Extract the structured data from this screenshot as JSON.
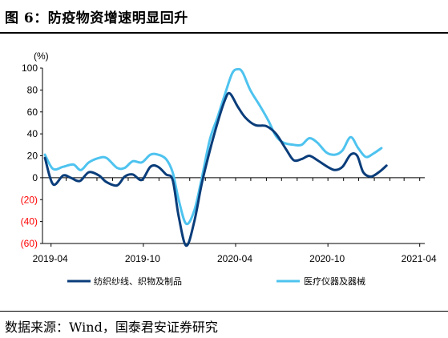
{
  "title": "图 6：防疫物资增速明显回升",
  "source": "数据来源：Wind，国泰君安证券研究",
  "chart_data": {
    "type": "line",
    "unit_label": "(%)",
    "ylim": [
      -60,
      100
    ],
    "y_ticks": [
      {
        "value": 100,
        "label": "100",
        "color": "#000000"
      },
      {
        "value": 80,
        "label": "80",
        "color": "#000000"
      },
      {
        "value": 60,
        "label": "60",
        "color": "#000000"
      },
      {
        "value": 40,
        "label": "40",
        "color": "#000000"
      },
      {
        "value": 20,
        "label": "20",
        "color": "#000000"
      },
      {
        "value": 0,
        "label": "0",
        "color": "#000000"
      },
      {
        "value": -20,
        "label": "(20)",
        "color": "#ff0000"
      },
      {
        "value": -40,
        "label": "(40)",
        "color": "#ff0000"
      },
      {
        "value": -60,
        "label": "(60)",
        "color": "#ff0000"
      }
    ],
    "x_range": [
      "2019-04",
      "2021-04"
    ],
    "x_ticks": [
      "2019-04",
      "2019-10",
      "2020-04",
      "2020-10",
      "2021-04"
    ],
    "legend_position": "bottom",
    "series": [
      {
        "name": "纺织纱线、织物及制品",
        "color": "#0a3d7a",
        "points": [
          [
            "2019-03-20",
            18
          ],
          [
            "2019-04-05",
            -6
          ],
          [
            "2019-04-25",
            2
          ],
          [
            "2019-05-10",
            0
          ],
          [
            "2019-05-28",
            -3
          ],
          [
            "2019-06-15",
            5
          ],
          [
            "2019-07-05",
            2
          ],
          [
            "2019-07-20",
            -4
          ],
          [
            "2019-08-10",
            -7
          ],
          [
            "2019-08-25",
            1
          ],
          [
            "2019-09-10",
            3
          ],
          [
            "2019-09-28",
            -2
          ],
          [
            "2019-10-15",
            10
          ],
          [
            "2019-10-30",
            10
          ],
          [
            "2019-11-15",
            3
          ],
          [
            "2019-11-28",
            -2
          ],
          [
            "2019-12-10",
            -35
          ],
          [
            "2019-12-25",
            -62
          ],
          [
            "2020-01-10",
            -40
          ],
          [
            "2020-01-25",
            -5
          ],
          [
            "2020-02-10",
            25
          ],
          [
            "2020-02-25",
            50
          ],
          [
            "2020-03-10",
            70
          ],
          [
            "2020-03-20",
            77
          ],
          [
            "2020-04-05",
            65
          ],
          [
            "2020-04-20",
            55
          ],
          [
            "2020-05-10",
            48
          ],
          [
            "2020-06-01",
            47
          ],
          [
            "2020-06-20",
            40
          ],
          [
            "2020-07-10",
            26
          ],
          [
            "2020-07-25",
            16
          ],
          [
            "2020-08-10",
            17
          ],
          [
            "2020-08-25",
            20
          ],
          [
            "2020-09-10",
            16
          ],
          [
            "2020-09-30",
            10
          ],
          [
            "2020-10-15",
            7
          ],
          [
            "2020-10-30",
            10
          ],
          [
            "2020-11-15",
            21
          ],
          [
            "2020-11-28",
            20
          ],
          [
            "2020-12-10",
            5
          ],
          [
            "2020-12-25",
            1
          ],
          [
            "2021-01-10",
            5
          ],
          [
            "2021-01-25",
            11
          ]
        ]
      },
      {
        "name": "医疗仪器及器械",
        "color": "#4ec3ef",
        "points": [
          [
            "2019-03-20",
            21
          ],
          [
            "2019-04-05",
            8
          ],
          [
            "2019-04-25",
            10
          ],
          [
            "2019-05-15",
            12
          ],
          [
            "2019-05-30",
            7
          ],
          [
            "2019-06-15",
            14
          ],
          [
            "2019-07-05",
            18
          ],
          [
            "2019-07-20",
            18
          ],
          [
            "2019-08-10",
            9
          ],
          [
            "2019-08-25",
            9
          ],
          [
            "2019-09-10",
            15
          ],
          [
            "2019-09-28",
            14
          ],
          [
            "2019-10-15",
            21
          ],
          [
            "2019-10-30",
            21
          ],
          [
            "2019-11-15",
            17
          ],
          [
            "2019-11-28",
            5
          ],
          [
            "2019-12-10",
            -20
          ],
          [
            "2019-12-25",
            -42
          ],
          [
            "2020-01-10",
            -30
          ],
          [
            "2020-01-25",
            0
          ],
          [
            "2020-02-10",
            35
          ],
          [
            "2020-02-25",
            55
          ],
          [
            "2020-03-10",
            75
          ],
          [
            "2020-03-25",
            95
          ],
          [
            "2020-04-05",
            99
          ],
          [
            "2020-04-15",
            96
          ],
          [
            "2020-04-30",
            80
          ],
          [
            "2020-05-20",
            65
          ],
          [
            "2020-06-05",
            52
          ],
          [
            "2020-06-20",
            38
          ],
          [
            "2020-07-05",
            32
          ],
          [
            "2020-07-25",
            30
          ],
          [
            "2020-08-10",
            30
          ],
          [
            "2020-08-25",
            36
          ],
          [
            "2020-09-10",
            32
          ],
          [
            "2020-09-28",
            23
          ],
          [
            "2020-10-15",
            21
          ],
          [
            "2020-10-30",
            25
          ],
          [
            "2020-11-15",
            37
          ],
          [
            "2020-11-30",
            27
          ],
          [
            "2020-12-15",
            19
          ],
          [
            "2020-12-30",
            22
          ],
          [
            "2021-01-15",
            27
          ]
        ]
      }
    ]
  }
}
